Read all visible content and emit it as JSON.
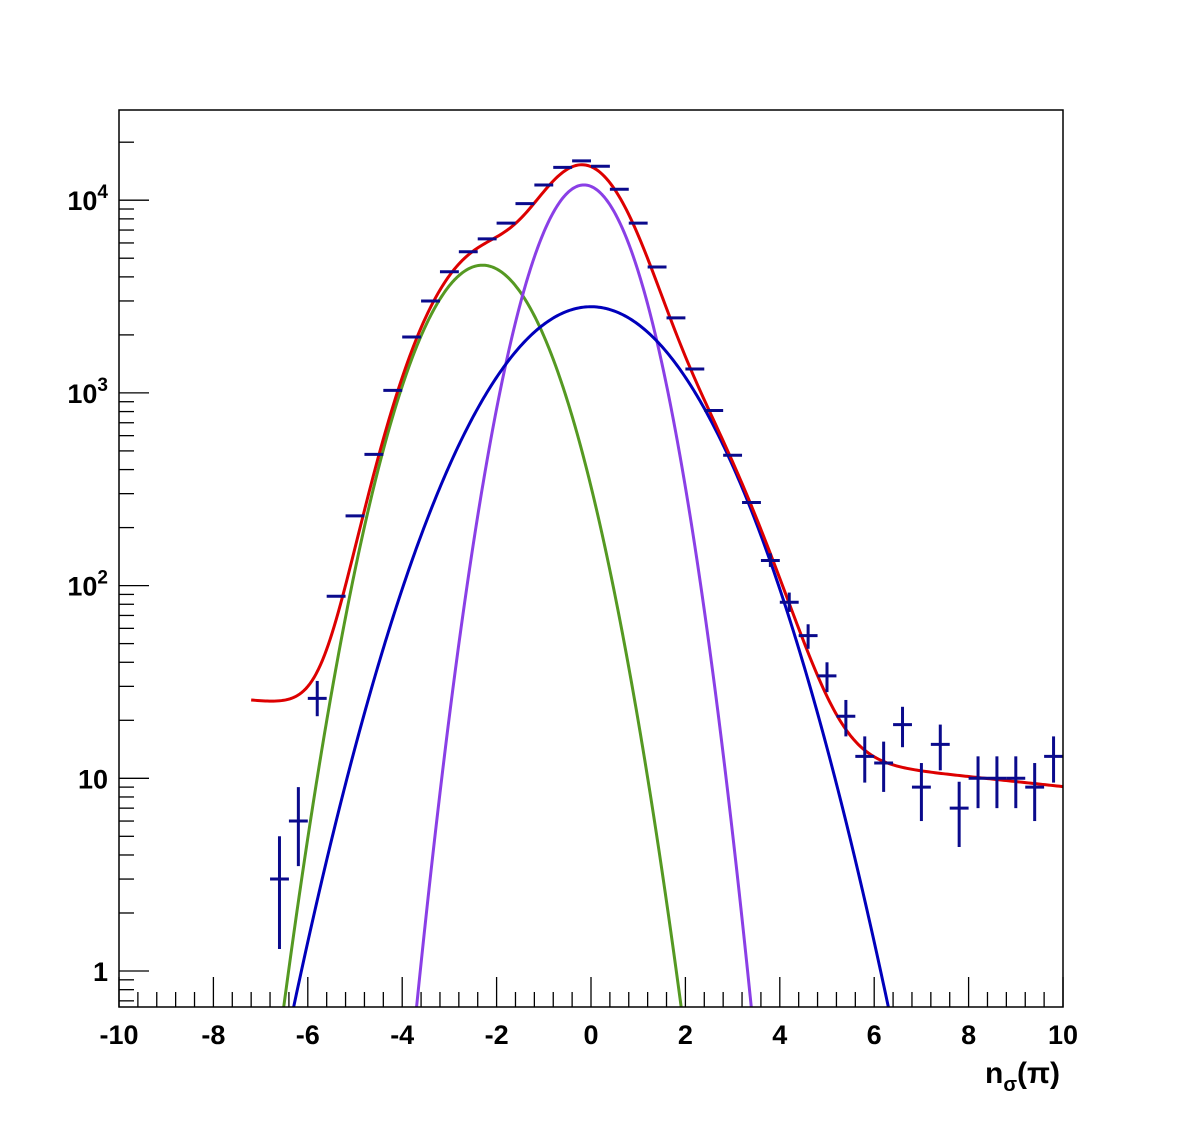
{
  "chart_data": {
    "type": "line",
    "title": "",
    "xlabel": "nσ(π)",
    "xlabel_parts": {
      "base": "n",
      "sub": "σ",
      "arg": "(π)"
    },
    "ylabel": "",
    "xlim": [
      -10,
      10
    ],
    "ylim": [
      0.7,
      30000
    ],
    "y_scale": "log",
    "grid": false,
    "legend": "none",
    "x_ticks": [
      -10,
      -8,
      -6,
      -4,
      -2,
      0,
      2,
      4,
      6,
      8,
      10
    ],
    "x_tick_labels": [
      "-10",
      "-8",
      "-6",
      "-4",
      "-2",
      "0",
      "2",
      "4",
      "6",
      "8",
      "10"
    ],
    "y_ticks": [
      1,
      10,
      100,
      1000,
      10000
    ],
    "y_tick_labels": [
      {
        "base": "1",
        "exp": ""
      },
      {
        "base": "10",
        "exp": ""
      },
      {
        "base": "10",
        "exp": "2"
      },
      {
        "base": "10",
        "exp": "3"
      },
      {
        "base": "10",
        "exp": "4"
      }
    ],
    "colors": {
      "data": "#0a0a8c",
      "total": "#dd0000",
      "green": "#559922",
      "purple": "#8a3fe6",
      "blue": "#0000bb"
    },
    "data_points": [
      {
        "x": -6.6,
        "y": 3.0,
        "ylo": 1.3,
        "yhi": 5.0
      },
      {
        "x": -6.2,
        "y": 6.0,
        "ylo": 3.5,
        "yhi": 9.0
      },
      {
        "x": -5.8,
        "y": 26,
        "ylo": 21,
        "yhi": 32
      },
      {
        "x": -5.4,
        "y": 88
      },
      {
        "x": -5.0,
        "y": 230
      },
      {
        "x": -4.6,
        "y": 480
      },
      {
        "x": -4.2,
        "y": 1030
      },
      {
        "x": -3.8,
        "y": 1950
      },
      {
        "x": -3.4,
        "y": 3000
      },
      {
        "x": -3.0,
        "y": 4250
      },
      {
        "x": -2.6,
        "y": 5400
      },
      {
        "x": -2.2,
        "y": 6300
      },
      {
        "x": -1.8,
        "y": 7600
      },
      {
        "x": -1.4,
        "y": 9600
      },
      {
        "x": -1.0,
        "y": 12000
      },
      {
        "x": -0.6,
        "y": 14800
      },
      {
        "x": -0.2,
        "y": 16000
      },
      {
        "x": 0.2,
        "y": 15000
      },
      {
        "x": 0.6,
        "y": 11400
      },
      {
        "x": 1.0,
        "y": 7600
      },
      {
        "x": 1.4,
        "y": 4500
      },
      {
        "x": 1.8,
        "y": 2450
      },
      {
        "x": 2.2,
        "y": 1330
      },
      {
        "x": 2.6,
        "y": 810
      },
      {
        "x": 3.0,
        "y": 475
      },
      {
        "x": 3.4,
        "y": 270
      },
      {
        "x": 3.8,
        "y": 135,
        "ylo": 125,
        "yhi": 147
      },
      {
        "x": 4.2,
        "y": 82,
        "ylo": 73,
        "yhi": 92
      },
      {
        "x": 4.6,
        "y": 55,
        "ylo": 47,
        "yhi": 63
      },
      {
        "x": 5.0,
        "y": 34,
        "ylo": 28,
        "yhi": 40
      },
      {
        "x": 5.4,
        "y": 21,
        "ylo": 16.5,
        "yhi": 25.5
      },
      {
        "x": 5.8,
        "y": 13,
        "ylo": 9.5,
        "yhi": 16.5
      },
      {
        "x": 6.2,
        "y": 12,
        "ylo": 8.5,
        "yhi": 15.5
      },
      {
        "x": 6.6,
        "y": 19,
        "ylo": 14.5,
        "yhi": 23.5
      },
      {
        "x": 7.0,
        "y": 9,
        "ylo": 6.0,
        "yhi": 12.0
      },
      {
        "x": 7.4,
        "y": 15,
        "ylo": 11,
        "yhi": 19
      },
      {
        "x": 7.8,
        "y": 7,
        "ylo": 4.4,
        "yhi": 9.6
      },
      {
        "x": 8.2,
        "y": 10,
        "ylo": 7.0,
        "yhi": 13.0
      },
      {
        "x": 8.6,
        "y": 10,
        "ylo": 7.0,
        "yhi": 13.0
      },
      {
        "x": 9.0,
        "y": 10,
        "ylo": 7.0,
        "yhi": 13.0
      },
      {
        "x": 9.4,
        "y": 9,
        "ylo": 6.0,
        "yhi": 12.0
      },
      {
        "x": 9.8,
        "y": 13,
        "ylo": 9.5,
        "yhi": 16.5
      }
    ],
    "x_bin_half_width": 0.2,
    "curves": {
      "green": {
        "amplitude": 4600,
        "mean": -2.3,
        "sigma": 1.0,
        "x_range": [
          -6.8,
          2.3
        ]
      },
      "purple": {
        "amplitude": 12000,
        "mean": -0.15,
        "sigma": 0.8,
        "x_range": [
          -4.0,
          3.8
        ]
      },
      "blue": {
        "amplitude": 2800,
        "mean": 0.0,
        "sigma": 1.54,
        "x_range": [
          -6.5,
          6.5
        ]
      },
      "total_background": {
        "amplitude": 16.5,
        "slope": 0.06
      }
    }
  }
}
